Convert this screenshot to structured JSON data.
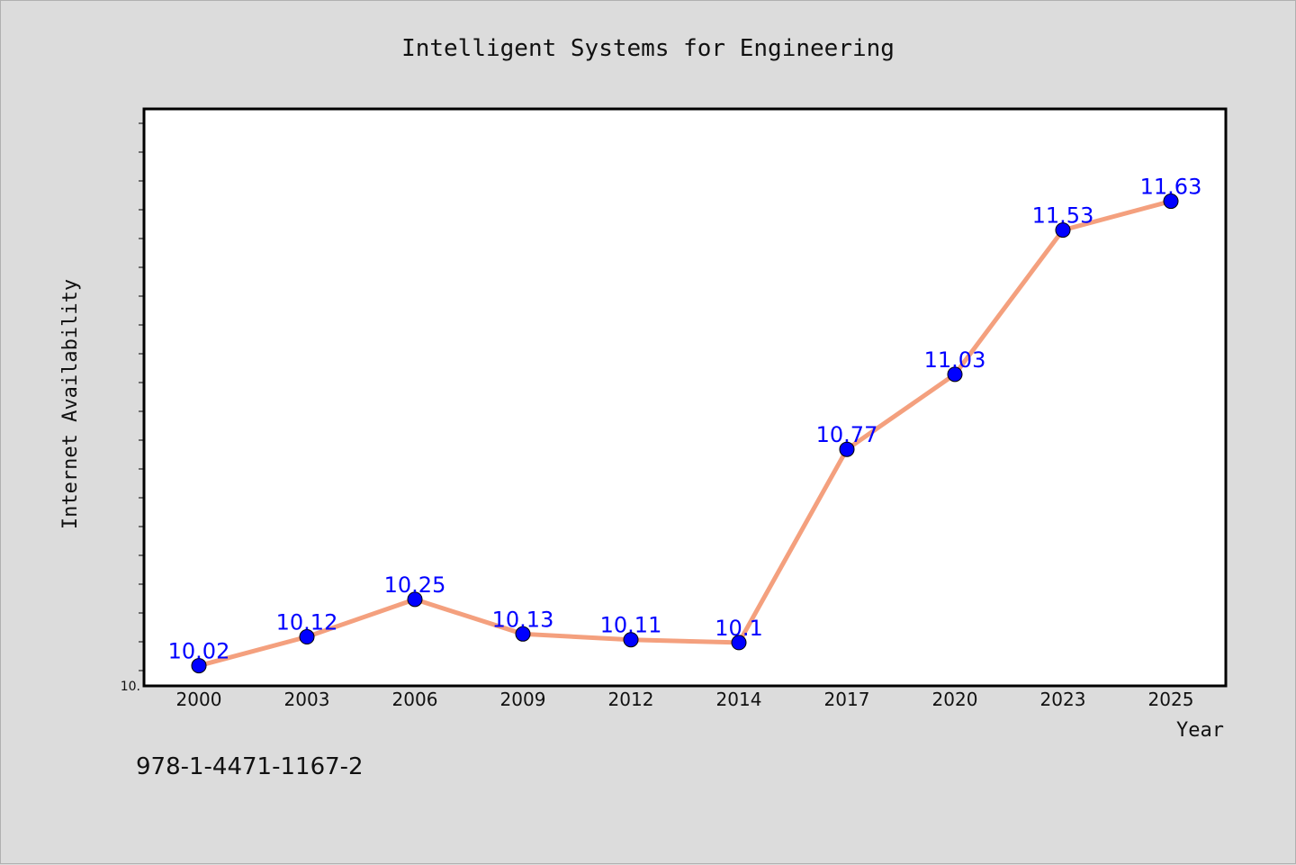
{
  "chart_data": {
    "type": "line",
    "title": "Intelligent Systems for Engineering",
    "xlabel": "Year",
    "ylabel": "Internet Availability",
    "categories": [
      "2000",
      "2003",
      "2006",
      "2009",
      "2012",
      "2014",
      "2017",
      "2020",
      "2023",
      "2025"
    ],
    "series": [
      {
        "values": [
          10.02,
          10.12,
          10.25,
          10.13,
          10.11,
          10.1,
          10.77,
          11.03,
          11.53,
          11.63
        ],
        "labels": [
          "10.02",
          "10.12",
          "10.25",
          "10.13",
          "10.11",
          "10.1",
          "10.77",
          "11.03",
          "11.53",
          "11.63"
        ],
        "line_color": "#f4a07e",
        "marker_color": "#0000ff"
      }
    ],
    "y_tick_label": "10.",
    "ylim": [
      9.95,
      11.95
    ],
    "grid": false,
    "legend": "none"
  },
  "footer": {
    "isbn": "978-1-4471-1167-2"
  },
  "colors": {
    "background": "#dcdcdc",
    "plot_background": "#ffffff",
    "data_label": "#0000ff"
  }
}
